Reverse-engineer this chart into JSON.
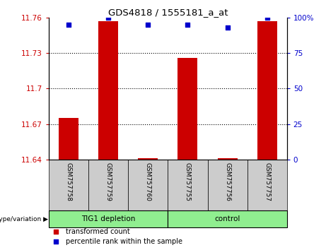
{
  "title": "GDS4818 / 1555181_a_at",
  "samples": [
    "GSM757758",
    "GSM757759",
    "GSM757760",
    "GSM757755",
    "GSM757756",
    "GSM757757"
  ],
  "red_values": [
    11.675,
    11.757,
    11.641,
    11.726,
    11.641,
    11.757
  ],
  "blue_values": [
    95,
    100,
    95,
    95,
    93,
    100
  ],
  "ylim_left": [
    11.64,
    11.76
  ],
  "ylim_right": [
    0,
    100
  ],
  "yticks_left": [
    11.64,
    11.67,
    11.7,
    11.73,
    11.76
  ],
  "ytick_labels_left": [
    "11.64",
    "11.67",
    "11.7",
    "11.73",
    "11.76"
  ],
  "yticks_right": [
    0,
    25,
    50,
    75,
    100
  ],
  "ytick_labels_right": [
    "0",
    "25",
    "50",
    "75",
    "100%"
  ],
  "group1_label": "TIG1 depletion",
  "group2_label": "control",
  "group1_count": 3,
  "group2_count": 3,
  "genotype_label": "genotype/variation",
  "legend1": "transformed count",
  "legend2": "percentile rank within the sample",
  "bar_color_red": "#cc0000",
  "bar_color_blue": "#0000cc",
  "group1_color": "#90ee90",
  "group2_color": "#90ee90",
  "tick_color_left": "#cc0000",
  "tick_color_right": "#0000cc",
  "bar_width": 0.5,
  "bg_plot": "#ffffff",
  "bg_xtick": "#cccccc",
  "grid_dotted_at": [
    11.67,
    11.7,
    11.73
  ]
}
